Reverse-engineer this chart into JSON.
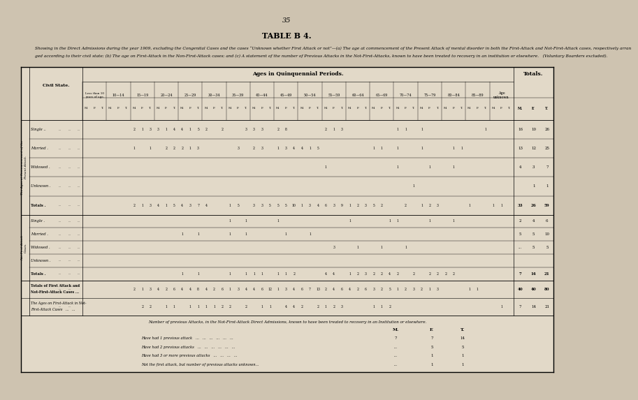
{
  "page_number": "35",
  "title": "TABLE B 4.",
  "subtitle": "Showing in the Direct Admissions during the year 1909, excluding the Congenital Cases and the cases “Unknown whether First Attack or not”—(a) The age at commencement of the Present Attack of mental disorder in both the First-Attack and Not-First-Attack cases, respectively arranged according to their civil state; (b) The age on First-Attack in the Non-First-Attack cases; and (c) A statement of the number of Previous Attacks in the Not-First-Attacks, known to have been treated to recovery in an institution or elsewhere.   (Voluntary Boarders excluded).",
  "bg_color": "#cec3b0",
  "table_bg": "#e2d9c8",
  "age_header": "Ages in Quinquennial Periods.",
  "totals_header": "Totals.",
  "civil_state_header": "Civil State.",
  "age_groups": [
    "Less than 10\nyears of age.",
    "10—14",
    "15—19",
    "20—24",
    "25—29",
    "30—34",
    "35—39",
    "40—44",
    "45—49",
    "50—54",
    "55—59",
    "60—64",
    "65—69",
    "70—74",
    "75—79",
    "80—84",
    "85—89",
    "Age\nunknown"
  ],
  "mft_labels": [
    "M.",
    "F.",
    "T."
  ],
  "sec1_row_labels": [
    "Single",
    "Married",
    "Widowed",
    "Unknown",
    "Totals"
  ],
  "sec1_totals": [
    [
      "16",
      "10",
      "26"
    ],
    [
      "13",
      "12",
      "25"
    ],
    [
      "4",
      "3",
      "7"
    ],
    [
      "",
      "1",
      "1"
    ],
    [
      "33",
      "26",
      "59"
    ]
  ],
  "sec2_row_labels": [
    "Single",
    "Married",
    "Widowed",
    "Unknown",
    "Totals"
  ],
  "sec2_totals": [
    [
      "2",
      "4",
      "6"
    ],
    [
      "5",
      "5",
      "10"
    ],
    [
      "...",
      "5",
      "5"
    ],
    [
      "",
      "",
      ""
    ],
    [
      "7",
      "14",
      "21"
    ]
  ],
  "combined_totals": [
    "40",
    "40",
    "80"
  ],
  "age_first_totals": [
    "7",
    "14",
    "21"
  ],
  "bottom_title": "Number of previous Attacks, in the Not-First-Attack Direct Admissions, known to have been treated to recovery in an Institution or elsewhere.",
  "bottom_rows": [
    {
      "label": "Have had 1 previous attack   ...   ...   ...   ...   ...   ...",
      "M": "7",
      "F": "7",
      "T": "14"
    },
    {
      "label": "Have had 2 previous attacks   ...   ...   ...   ...   ...   ...",
      "M": "...",
      "F": "5",
      "T": "5"
    },
    {
      "label": "Have had 3 or more previous attacks   ...   ...   ...   ...",
      "M": "...",
      "F": "1",
      "T": "1"
    },
    {
      "label": "Not the first attack, but number of previous attacks unknown...",
      "M": "...",
      "F": "1",
      "T": "1"
    }
  ],
  "left_label_sec1": "The Ages at Commencement of the\nPresent Attack.",
  "left_label_sec2": "Not-First-Attack\nCases.",
  "sec1_data": [
    [
      [
        "",
        "",
        ""
      ],
      [
        "",
        "",
        ""
      ],
      [
        "2",
        "1",
        "3"
      ],
      [
        "3",
        "1",
        "4"
      ],
      [
        "4",
        "1",
        "5"
      ],
      [
        "2",
        "",
        "2"
      ],
      [
        "",
        "",
        "3"
      ],
      [
        "3",
        "3",
        ""
      ],
      [
        "2",
        "8",
        ""
      ],
      [
        "",
        "",
        ""
      ],
      [
        "2",
        "1",
        "3"
      ],
      [
        "",
        "",
        ""
      ],
      [
        "",
        "",
        ""
      ],
      [
        "1",
        "1",
        ""
      ],
      [
        "1",
        "",
        ""
      ],
      [
        "",
        "",
        ""
      ],
      [
        "",
        "",
        "1"
      ],
      [
        "",
        "",
        ""
      ]
    ],
    [
      [
        "",
        "",
        ""
      ],
      [
        "",
        "",
        ""
      ],
      [
        "1",
        "",
        "1"
      ],
      [
        "",
        "2",
        "2"
      ],
      [
        "2",
        "1",
        "3"
      ],
      [
        "",
        "",
        ""
      ],
      [
        "",
        "3",
        ""
      ],
      [
        "2",
        "3",
        ""
      ],
      [
        "1",
        "3",
        "4"
      ],
      [
        "4",
        "1",
        "5"
      ],
      [
        "",
        "",
        ""
      ],
      [
        "",
        "",
        ""
      ],
      [
        "1",
        "1",
        ""
      ],
      [
        "1",
        "",
        ""
      ],
      [
        "1",
        "",
        ""
      ],
      [
        "",
        "1",
        "1"
      ],
      [
        "",
        "",
        ""
      ],
      [
        "",
        "",
        ""
      ]
    ],
    [
      [
        "",
        "",
        ""
      ],
      [
        "",
        "",
        ""
      ],
      [
        "",
        "",
        ""
      ],
      [
        "",
        "",
        ""
      ],
      [
        "",
        "",
        ""
      ],
      [
        "",
        "",
        ""
      ],
      [
        "",
        "",
        ""
      ],
      [
        "",
        "",
        ""
      ],
      [
        "",
        "",
        ""
      ],
      [
        "",
        "",
        ""
      ],
      [
        "1",
        "",
        ""
      ],
      [
        "",
        "",
        ""
      ],
      [
        "",
        "",
        ""
      ],
      [
        "1",
        "",
        ""
      ],
      [
        "",
        "1",
        ""
      ],
      [
        "",
        "1",
        ""
      ],
      [
        "",
        "",
        ""
      ],
      [
        "",
        "",
        ""
      ]
    ],
    [
      [
        "",
        "",
        ""
      ],
      [
        "",
        "",
        ""
      ],
      [
        "",
        "",
        ""
      ],
      [
        "",
        "",
        ""
      ],
      [
        "",
        "",
        ""
      ],
      [
        "",
        "",
        ""
      ],
      [
        "",
        "",
        ""
      ],
      [
        "",
        "",
        ""
      ],
      [
        "",
        "",
        ""
      ],
      [
        "",
        "",
        ""
      ],
      [
        "",
        "",
        ""
      ],
      [
        "",
        "",
        ""
      ],
      [
        "",
        "",
        ""
      ],
      [
        "",
        "",
        "1"
      ],
      [
        "",
        "",
        ""
      ],
      [
        "",
        "",
        ""
      ],
      [
        "",
        "",
        ""
      ],
      [
        "",
        "",
        ""
      ]
    ],
    [
      [
        "",
        "",
        ""
      ],
      [
        "",
        "",
        ""
      ],
      [
        "2",
        "1",
        "3"
      ],
      [
        "4",
        "1",
        "5"
      ],
      [
        "4",
        "3",
        "7"
      ],
      [
        "4",
        "",
        ""
      ],
      [
        "1",
        "5",
        ""
      ],
      [
        "3",
        "3",
        "5"
      ],
      [
        "5",
        "5",
        "10"
      ],
      [
        "1",
        "3",
        "4"
      ],
      [
        "6",
        "3",
        "9"
      ],
      [
        "1",
        "2",
        "3"
      ],
      [
        "5",
        "2",
        ""
      ],
      [
        "",
        "2",
        ""
      ],
      [
        "1",
        "2",
        "3"
      ],
      [
        "",
        "",
        ""
      ],
      [
        "1",
        "",
        ""
      ],
      [
        "1",
        "1",
        ""
      ]
    ]
  ],
  "sec2_data": [
    [
      [
        "",
        "",
        ""
      ],
      [
        "",
        "",
        ""
      ],
      [
        "",
        "",
        ""
      ],
      [
        "",
        "",
        ""
      ],
      [
        "",
        "",
        ""
      ],
      [
        "",
        "",
        ""
      ],
      [
        "1",
        "",
        "1"
      ],
      [
        "",
        "",
        ""
      ],
      [
        "1",
        "",
        ""
      ],
      [
        "",
        "",
        ""
      ],
      [
        "",
        "",
        ""
      ],
      [
        "1",
        "",
        ""
      ],
      [
        "",
        "",
        "1"
      ],
      [
        "1",
        "",
        ""
      ],
      [
        "",
        "1",
        ""
      ],
      [
        "",
        "1",
        ""
      ],
      [
        "",
        "",
        ""
      ],
      [
        "",
        "",
        ""
      ]
    ],
    [
      [
        "",
        "",
        ""
      ],
      [
        "",
        "",
        ""
      ],
      [
        "",
        "",
        ""
      ],
      [
        "",
        "",
        ""
      ],
      [
        "1",
        "",
        "1"
      ],
      [
        "",
        "",
        ""
      ],
      [
        "1",
        "",
        "1"
      ],
      [
        "",
        "",
        ""
      ],
      [
        "",
        "1",
        ""
      ],
      [
        "",
        "1",
        ""
      ],
      [
        "",
        "",
        ""
      ],
      [
        "",
        "",
        ""
      ],
      [
        "",
        "",
        ""
      ],
      [
        "",
        "",
        ""
      ],
      [
        "",
        "",
        ""
      ],
      [
        "",
        "",
        ""
      ],
      [
        "",
        "",
        ""
      ],
      [
        "",
        "",
        ""
      ]
    ],
    [
      [
        "",
        "",
        ""
      ],
      [
        "",
        "",
        ""
      ],
      [
        "",
        "",
        ""
      ],
      [
        "",
        "",
        ""
      ],
      [
        "",
        "",
        ""
      ],
      [
        "",
        "",
        ""
      ],
      [
        "",
        "",
        ""
      ],
      [
        "",
        "",
        ""
      ],
      [
        "",
        "",
        ""
      ],
      [
        "",
        "",
        ""
      ],
      [
        "",
        "3",
        ""
      ],
      [
        "",
        "1",
        ""
      ],
      [
        "",
        "1",
        ""
      ],
      [
        "",
        "1",
        ""
      ],
      [
        "",
        "",
        ""
      ],
      [
        "",
        "",
        ""
      ],
      [
        "",
        "",
        ""
      ],
      [
        "",
        "",
        ""
      ]
    ],
    [
      [
        "",
        "",
        ""
      ],
      [
        "",
        "",
        ""
      ],
      [
        "",
        "",
        ""
      ],
      [
        "",
        "",
        ""
      ],
      [
        "",
        "",
        ""
      ],
      [
        "",
        "",
        ""
      ],
      [
        "",
        "",
        ""
      ],
      [
        "",
        "",
        ""
      ],
      [
        "",
        "",
        ""
      ],
      [
        "",
        "",
        ""
      ],
      [
        "",
        "",
        ""
      ],
      [
        "",
        "",
        ""
      ],
      [
        "",
        "",
        ""
      ],
      [
        "",
        "",
        ""
      ],
      [
        "",
        "",
        ""
      ],
      [
        "",
        "",
        ""
      ],
      [
        "",
        "",
        ""
      ],
      [
        "",
        "",
        ""
      ]
    ],
    [
      [
        "",
        "",
        ""
      ],
      [
        "",
        "",
        ""
      ],
      [
        "",
        "",
        ""
      ],
      [
        "",
        "",
        ""
      ],
      [
        "1",
        "",
        "1"
      ],
      [
        "",
        "",
        ""
      ],
      [
        "1",
        "",
        "1"
      ],
      [
        "1",
        "1",
        ""
      ],
      [
        "1",
        "1",
        "2"
      ],
      [
        "",
        "",
        ""
      ],
      [
        "4",
        "4",
        ""
      ],
      [
        "1",
        "2",
        "3"
      ],
      [
        "2",
        "2",
        "4"
      ],
      [
        "2",
        "",
        "2"
      ],
      [
        "",
        "2",
        "2"
      ],
      [
        "2",
        "2",
        ""
      ],
      [
        "",
        "",
        ""
      ],
      [
        "",
        "",
        ""
      ]
    ]
  ],
  "combined_data": [
    [
      "",
      "",
      ""
    ],
    [
      "",
      "",
      ""
    ],
    [
      "2",
      "1",
      "3"
    ],
    [
      "4",
      "2",
      "6"
    ],
    [
      "4",
      "4",
      "8"
    ],
    [
      "4",
      "2",
      "6"
    ],
    [
      "1",
      "3",
      "4"
    ],
    [
      "4",
      "6",
      "12"
    ],
    [
      "1",
      "3",
      "4"
    ],
    [
      "6",
      "7",
      "13"
    ],
    [
      "2",
      "4",
      "6"
    ],
    [
      "4",
      "2",
      "6"
    ],
    [
      "3",
      "2",
      "5"
    ],
    [
      "1",
      "2",
      "3"
    ],
    [
      "2",
      "1",
      "3"
    ],
    [
      "",
      "",
      ""
    ],
    [
      "1",
      "1",
      ""
    ],
    [
      "",
      "",
      ""
    ]
  ],
  "age_first_data": [
    [
      "",
      "",
      ""
    ],
    [
      "",
      "",
      ""
    ],
    [
      "",
      "2",
      "2"
    ],
    [
      "",
      "1",
      "1"
    ],
    [
      "",
      "1",
      "1"
    ],
    [
      "1",
      "1",
      "2"
    ],
    [
      "2",
      "",
      "2"
    ],
    [
      "",
      "1",
      "1"
    ],
    [
      "",
      "4",
      "4"
    ],
    [
      "2",
      "",
      "2"
    ],
    [
      "1",
      "2",
      "3"
    ],
    [
      "",
      "",
      ""
    ],
    [
      "1",
      "1",
      "2"
    ],
    [
      "",
      "",
      ""
    ],
    [
      "",
      "",
      ""
    ],
    [
      "",
      "",
      ""
    ],
    [
      "",
      "",
      ""
    ],
    [
      "",
      "1",
      ""
    ]
  ]
}
